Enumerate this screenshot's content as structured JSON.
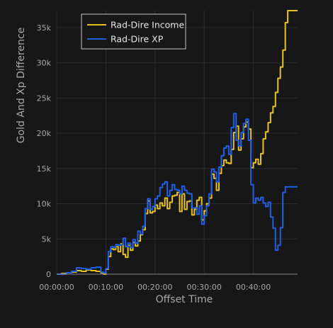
{
  "chart_data": {
    "type": "line",
    "xlabel": "Offset Time",
    "ylabel": "Gold And Xp Difference",
    "xlim": [
      0,
      2940
    ],
    "ylim": [
      0,
      37500
    ],
    "x_ticks": [
      {
        "value": 0,
        "label": "00:00:00"
      },
      {
        "value": 600,
        "label": "00:10:00"
      },
      {
        "value": 1200,
        "label": "00:20:00"
      },
      {
        "value": 1800,
        "label": "00:30:00"
      },
      {
        "value": 2400,
        "label": "00:40:00"
      }
    ],
    "y_ticks": [
      {
        "value": 0,
        "label": "0"
      },
      {
        "value": 5000,
        "label": "5k"
      },
      {
        "value": 10000,
        "label": "10k"
      },
      {
        "value": 15000,
        "label": "15k"
      },
      {
        "value": 20000,
        "label": "20k"
      },
      {
        "value": 25000,
        "label": "25k"
      },
      {
        "value": 30000,
        "label": "30k"
      },
      {
        "value": 35000,
        "label": "35k"
      }
    ],
    "legend_position": "top-left",
    "grid": true,
    "series": [
      {
        "name": "Rad-Dire Income",
        "color": "#e8c21c",
        "points": [
          [
            0,
            0
          ],
          [
            60,
            100
          ],
          [
            120,
            200
          ],
          [
            180,
            300
          ],
          [
            240,
            500
          ],
          [
            300,
            400
          ],
          [
            360,
            600
          ],
          [
            420,
            500
          ],
          [
            480,
            400
          ],
          [
            540,
            200
          ],
          [
            570,
            -100
          ],
          [
            600,
            700
          ],
          [
            630,
            2500
          ],
          [
            660,
            3600
          ],
          [
            690,
            3500
          ],
          [
            720,
            3900
          ],
          [
            750,
            3200
          ],
          [
            780,
            4300
          ],
          [
            810,
            2800
          ],
          [
            840,
            2400
          ],
          [
            870,
            4100
          ],
          [
            900,
            3400
          ],
          [
            930,
            4500
          ],
          [
            960,
            4000
          ],
          [
            990,
            4700
          ],
          [
            1020,
            5600
          ],
          [
            1050,
            6300
          ],
          [
            1080,
            8600
          ],
          [
            1110,
            10400
          ],
          [
            1140,
            8700
          ],
          [
            1170,
            8900
          ],
          [
            1200,
            9800
          ],
          [
            1230,
            9300
          ],
          [
            1260,
            10100
          ],
          [
            1290,
            9700
          ],
          [
            1320,
            10800
          ],
          [
            1350,
            9300
          ],
          [
            1380,
            10200
          ],
          [
            1410,
            11100
          ],
          [
            1440,
            11200
          ],
          [
            1470,
            11600
          ],
          [
            1500,
            8900
          ],
          [
            1530,
            11400
          ],
          [
            1560,
            9200
          ],
          [
            1590,
            10300
          ],
          [
            1620,
            10400
          ],
          [
            1650,
            8400
          ],
          [
            1680,
            9200
          ],
          [
            1710,
            10500
          ],
          [
            1740,
            10900
          ],
          [
            1770,
            7700
          ],
          [
            1800,
            9000
          ],
          [
            1830,
            10000
          ],
          [
            1860,
            10800
          ],
          [
            1890,
            14200
          ],
          [
            1920,
            13600
          ],
          [
            1950,
            11900
          ],
          [
            1980,
            14300
          ],
          [
            2010,
            15400
          ],
          [
            2040,
            16200
          ],
          [
            2070,
            15800
          ],
          [
            2100,
            15700
          ],
          [
            2130,
            17700
          ],
          [
            2160,
            20100
          ],
          [
            2190,
            21000
          ],
          [
            2220,
            17600
          ],
          [
            2250,
            19200
          ],
          [
            2280,
            20900
          ],
          [
            2310,
            21600
          ],
          [
            2340,
            20600
          ],
          [
            2370,
            15100
          ],
          [
            2400,
            15800
          ],
          [
            2430,
            16300
          ],
          [
            2460,
            15600
          ],
          [
            2490,
            17100
          ],
          [
            2520,
            19200
          ],
          [
            2550,
            20200
          ],
          [
            2580,
            21500
          ],
          [
            2610,
            22900
          ],
          [
            2640,
            23800
          ],
          [
            2670,
            25800
          ],
          [
            2700,
            27800
          ],
          [
            2730,
            29400
          ],
          [
            2760,
            31800
          ],
          [
            2790,
            35700
          ],
          [
            2820,
            37400
          ],
          [
            2850,
            37400
          ],
          [
            2880,
            37400
          ],
          [
            2910,
            37400
          ],
          [
            2940,
            37400
          ]
        ]
      },
      {
        "name": "Rad-Dire XP",
        "color": "#1f5fe6",
        "points": [
          [
            0,
            0
          ],
          [
            60,
            0
          ],
          [
            120,
            200
          ],
          [
            180,
            400
          ],
          [
            240,
            900
          ],
          [
            300,
            800
          ],
          [
            360,
            700
          ],
          [
            420,
            900
          ],
          [
            480,
            1000
          ],
          [
            540,
            300
          ],
          [
            570,
            200
          ],
          [
            600,
            800
          ],
          [
            630,
            3200
          ],
          [
            660,
            3900
          ],
          [
            690,
            3800
          ],
          [
            720,
            4200
          ],
          [
            750,
            4100
          ],
          [
            780,
            4200
          ],
          [
            810,
            5100
          ],
          [
            840,
            3900
          ],
          [
            870,
            4400
          ],
          [
            900,
            3800
          ],
          [
            930,
            4900
          ],
          [
            960,
            4400
          ],
          [
            990,
            6100
          ],
          [
            1020,
            5700
          ],
          [
            1050,
            6800
          ],
          [
            1080,
            9300
          ],
          [
            1110,
            10700
          ],
          [
            1140,
            9200
          ],
          [
            1170,
            9600
          ],
          [
            1200,
            10700
          ],
          [
            1230,
            11100
          ],
          [
            1260,
            12300
          ],
          [
            1290,
            12800
          ],
          [
            1320,
            13100
          ],
          [
            1350,
            11100
          ],
          [
            1380,
            11900
          ],
          [
            1410,
            12700
          ],
          [
            1440,
            12000
          ],
          [
            1470,
            11900
          ],
          [
            1500,
            11400
          ],
          [
            1530,
            12500
          ],
          [
            1560,
            11900
          ],
          [
            1590,
            11500
          ],
          [
            1620,
            11400
          ],
          [
            1650,
            9400
          ],
          [
            1680,
            9400
          ],
          [
            1710,
            8500
          ],
          [
            1740,
            9700
          ],
          [
            1770,
            7100
          ],
          [
            1800,
            8300
          ],
          [
            1830,
            9700
          ],
          [
            1860,
            11400
          ],
          [
            1890,
            14900
          ],
          [
            1920,
            14500
          ],
          [
            1950,
            13100
          ],
          [
            1980,
            15200
          ],
          [
            2010,
            16800
          ],
          [
            2040,
            17900
          ],
          [
            2070,
            18200
          ],
          [
            2100,
            17000
          ],
          [
            2130,
            20800
          ],
          [
            2160,
            22800
          ],
          [
            2190,
            19000
          ],
          [
            2220,
            18200
          ],
          [
            2250,
            20100
          ],
          [
            2280,
            21400
          ],
          [
            2310,
            22000
          ],
          [
            2340,
            19000
          ],
          [
            2370,
            12700
          ],
          [
            2400,
            10100
          ],
          [
            2430,
            10800
          ],
          [
            2460,
            10500
          ],
          [
            2490,
            10900
          ],
          [
            2520,
            10100
          ],
          [
            2550,
            9600
          ],
          [
            2580,
            10200
          ],
          [
            2610,
            8100
          ],
          [
            2640,
            6500
          ],
          [
            2670,
            3400
          ],
          [
            2700,
            4100
          ],
          [
            2730,
            6600
          ],
          [
            2760,
            11600
          ],
          [
            2790,
            12400
          ],
          [
            2820,
            12400
          ],
          [
            2850,
            12400
          ],
          [
            2880,
            12400
          ],
          [
            2910,
            12400
          ],
          [
            2940,
            12400
          ]
        ]
      }
    ]
  }
}
